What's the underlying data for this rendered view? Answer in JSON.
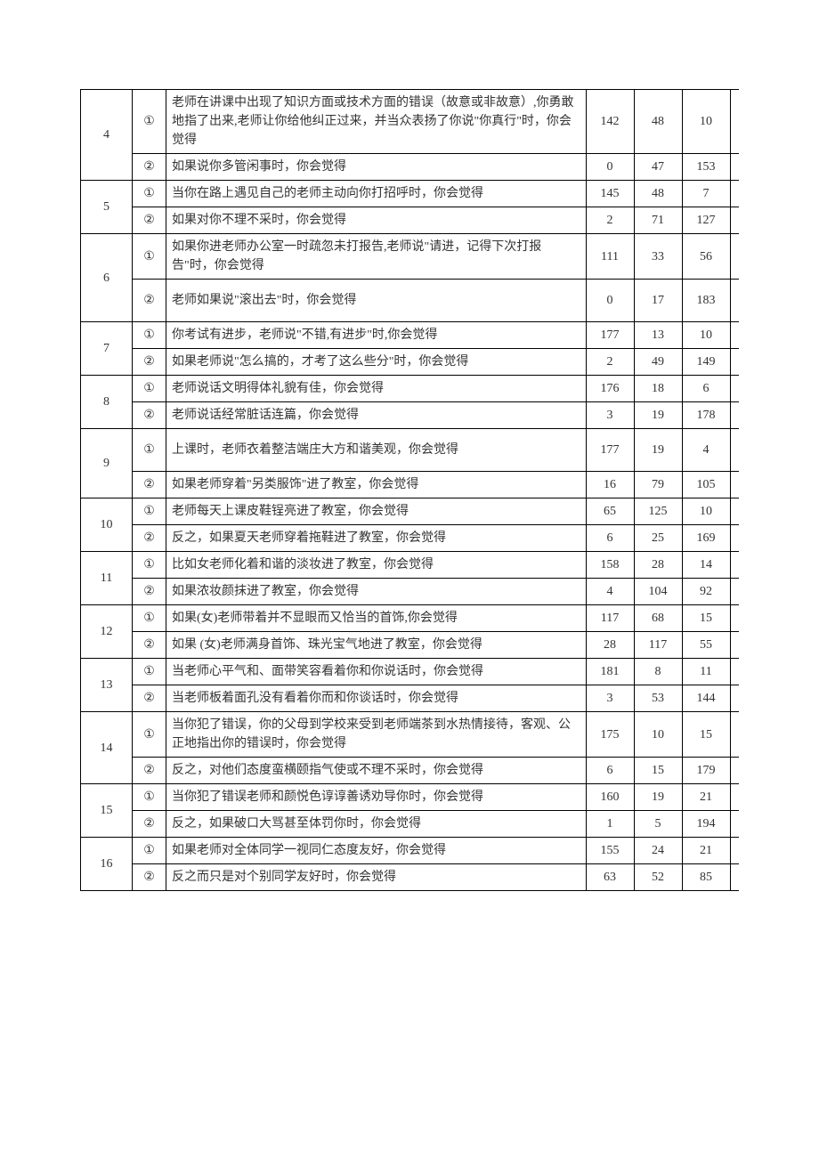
{
  "rows": [
    {
      "group": "4",
      "sub": "①",
      "text": "老师在讲课中出现了知识方面或技术方面的错误（故意或非故意）,你勇敢地指了出来,老师让你给他纠正过来，并当众表扬了你说\"你真行\"时，你会觉得",
      "v1": "142",
      "v2": "48",
      "v3": "10"
    },
    {
      "group": "",
      "sub": "②",
      "text": "如果说你多管闲事时，你会觉得",
      "v1": "0",
      "v2": "47",
      "v3": "153"
    },
    {
      "group": "5",
      "sub": "①",
      "text": "当你在路上遇见自己的老师主动向你打招呼时，你会觉得",
      "v1": "145",
      "v2": "48",
      "v3": "7"
    },
    {
      "group": "",
      "sub": "②",
      "text": "如果对你不理不采时，你会觉得",
      "v1": "2",
      "v2": "71",
      "v3": "127"
    },
    {
      "group": "6",
      "sub": "①",
      "text": "如果你进老师办公室一时疏忽未打报告,老师说\"请进，记得下次打报告\"时，你会觉得",
      "v1": "111",
      "v2": "33",
      "v3": "56"
    },
    {
      "group": "",
      "sub": "②",
      "text": "老师如果说\"滚出去\"时，你会觉得",
      "v1": "0",
      "v2": "17",
      "v3": "183",
      "tall": true
    },
    {
      "group": "7",
      "sub": "①",
      "text": "你考试有进步，老师说\"不错,有进步\"时,你会觉得",
      "v1": "177",
      "v2": "13",
      "v3": "10"
    },
    {
      "group": "",
      "sub": "②",
      "text": "如果老师说\"怎么搞的，才考了这么些分\"时，你会觉得",
      "v1": "2",
      "v2": "49",
      "v3": "149"
    },
    {
      "group": "8",
      "sub": "①",
      "text": "老师说话文明得体礼貌有佳，你会觉得",
      "v1": "176",
      "v2": "18",
      "v3": "6"
    },
    {
      "group": "",
      "sub": "②",
      "text": "老师说话经常脏话连篇，你会觉得",
      "v1": "3",
      "v2": "19",
      "v3": "178"
    },
    {
      "group": "9",
      "sub": "①",
      "text": "上课时，老师衣着整洁端庄大方和谐美观，你会觉得",
      "v1": "177",
      "v2": "19",
      "v3": "4",
      "tall": true
    },
    {
      "group": "",
      "sub": "②",
      "text": "如果老师穿着\"另类服饰\"进了教室，你会觉得",
      "v1": "16",
      "v2": "79",
      "v3": "105"
    },
    {
      "group": "10",
      "sub": "①",
      "text": "老师每天上课皮鞋锃亮进了教室，你会觉得",
      "v1": "65",
      "v2": "125",
      "v3": "10"
    },
    {
      "group": "",
      "sub": "②",
      "text": "反之，如果夏天老师穿着拖鞋进了教室，你会觉得",
      "v1": "6",
      "v2": "25",
      "v3": "169"
    },
    {
      "group": "11",
      "sub": "①",
      "text": "比如女老师化着和谐的淡妆进了教室，你会觉得",
      "v1": "158",
      "v2": "28",
      "v3": "14"
    },
    {
      "group": "",
      "sub": "②",
      "text": "如果浓妆颜抹进了教室，你会觉得",
      "v1": "4",
      "v2": "104",
      "v3": "92"
    },
    {
      "group": "12",
      "sub": "①",
      "text": "如果(女)老师带着并不显眼而又恰当的首饰,你会觉得",
      "v1": "117",
      "v2": "68",
      "v3": "15"
    },
    {
      "group": "",
      "sub": "②",
      "text": "如果 (女)老师满身首饰、珠光宝气地进了教室，你会觉得",
      "v1": "28",
      "v2": "117",
      "v3": "55"
    },
    {
      "group": "13",
      "sub": "①",
      "text": "当老师心平气和、面带笑容看着你和你说话时，你会觉得",
      "v1": "181",
      "v2": "8",
      "v3": "11"
    },
    {
      "group": "",
      "sub": "②",
      "text": "当老师板着面孔没有看着你而和你谈话时，你会觉得",
      "v1": "3",
      "v2": "53",
      "v3": "144"
    },
    {
      "group": "14",
      "sub": "①",
      "text": "当你犯了错误，你的父母到学校来受到老师端茶到水热情接待，客观、公正地指出你的错误时，你会觉得",
      "v1": "175",
      "v2": "10",
      "v3": "15"
    },
    {
      "group": "",
      "sub": "②",
      "text": "反之，对他们态度蛮横颐指气使或不理不采时，你会觉得",
      "v1": "6",
      "v2": "15",
      "v3": "179"
    },
    {
      "group": "15",
      "sub": "①",
      "text": "当你犯了错误老师和颜悦色谆谆善诱劝导你时，你会觉得",
      "v1": "160",
      "v2": "19",
      "v3": "21"
    },
    {
      "group": "",
      "sub": "②",
      "text": "反之，如果破口大骂甚至体罚你时，你会觉得",
      "v1": "1",
      "v2": "5",
      "v3": "194"
    },
    {
      "group": "16",
      "sub": "①",
      "text": "如果老师对全体同学一视同仁态度友好，你会觉得",
      "v1": "155",
      "v2": "24",
      "v3": "21"
    },
    {
      "group": "",
      "sub": "②",
      "text": "反之而只是对个别同学友好时，你会觉得",
      "v1": "63",
      "v2": "52",
      "v3": "85"
    }
  ]
}
